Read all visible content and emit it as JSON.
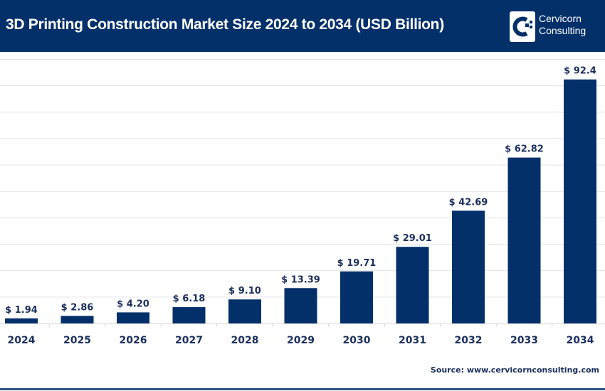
{
  "header": {
    "title": "3D Printing Construction Market Size 2024 to 2034 (USD Billion)",
    "logo_text_line1": "Cervicorn",
    "logo_text_line2": "Consulting",
    "background_color": "#04306a"
  },
  "source": "Source: www.cervicornconsulting.com",
  "chart_data": {
    "type": "bar",
    "title": "3D Printing Construction Market Size 2024 to 2034 (USD Billion)",
    "categories": [
      "2024",
      "2025",
      "2026",
      "2027",
      "2028",
      "2029",
      "2030",
      "2031",
      "2032",
      "2033",
      "2034"
    ],
    "values": [
      1.94,
      2.86,
      4.2,
      6.18,
      9.1,
      13.39,
      19.71,
      29.01,
      42.69,
      62.82,
      92.4
    ],
    "data_labels": [
      "$ 1.94",
      "$ 2.86",
      "$ 4.20",
      "$ 6.18",
      "$ 9.10",
      "$ 13.39",
      "$ 19.71",
      "$ 29.01",
      "$ 42.69",
      "$ 62.82",
      "$ 92.4"
    ],
    "ylim": [
      0,
      100
    ],
    "grid": true,
    "bar_color": "#04306a"
  }
}
